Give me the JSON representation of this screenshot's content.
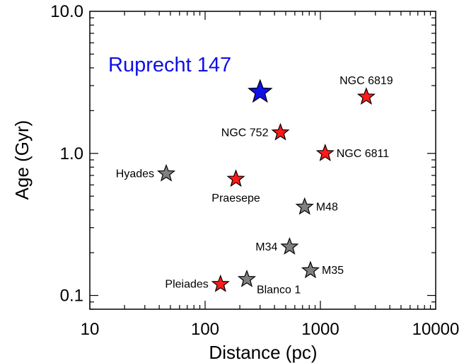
{
  "chart_data": {
    "type": "scatter",
    "xlabel": "Distance (pc)",
    "ylabel": "Age (Gyr)",
    "x_scale": "log",
    "y_scale": "log",
    "xlim": [
      10,
      10000
    ],
    "ylim": [
      0.08,
      10
    ],
    "x_ticks": [
      {
        "value": 10,
        "label": "10"
      },
      {
        "value": 100,
        "label": "100"
      },
      {
        "value": 1000,
        "label": "1000"
      },
      {
        "value": 10000,
        "label": "10000"
      }
    ],
    "y_ticks": [
      {
        "value": 0.1,
        "label": "0.1"
      },
      {
        "value": 1,
        "label": "1.0"
      },
      {
        "value": 10,
        "label": "10.0"
      }
    ],
    "grid": false,
    "annotation": "Ruprecht 147",
    "annotation_color": "#1010e8",
    "colors": {
      "red": "#ff1a1a",
      "gray": "#808080",
      "blue": "#1010e8"
    },
    "points": [
      {
        "name": "Ruprecht 147",
        "x": 300,
        "y": 2.7,
        "color": "blue",
        "big": true,
        "label": ""
      },
      {
        "name": "NGC 6819",
        "x": 2500,
        "y": 2.5,
        "color": "red",
        "label": "NGC 6819",
        "label_pos": "above"
      },
      {
        "name": "NGC 752",
        "x": 450,
        "y": 1.4,
        "color": "red",
        "label": "NGC 752",
        "label_pos": "left"
      },
      {
        "name": "NGC 6811",
        "x": 1100,
        "y": 1.0,
        "color": "red",
        "label": "NGC 6811",
        "label_pos": "right"
      },
      {
        "name": "Hyades",
        "x": 46,
        "y": 0.72,
        "color": "gray",
        "label": "Hyades",
        "label_pos": "left"
      },
      {
        "name": "Praesepe",
        "x": 185,
        "y": 0.66,
        "color": "red",
        "label": "Praesepe",
        "label_pos": "below"
      },
      {
        "name": "M48",
        "x": 730,
        "y": 0.42,
        "color": "gray",
        "label": "M48",
        "label_pos": "right"
      },
      {
        "name": "M34",
        "x": 540,
        "y": 0.22,
        "color": "gray",
        "label": "M34",
        "label_pos": "left"
      },
      {
        "name": "M35",
        "x": 820,
        "y": 0.15,
        "color": "gray",
        "label": "M35",
        "label_pos": "right"
      },
      {
        "name": "Pleiades",
        "x": 136,
        "y": 0.12,
        "color": "red",
        "label": "Pleiades",
        "label_pos": "left"
      },
      {
        "name": "Blanco 1",
        "x": 230,
        "y": 0.13,
        "color": "gray",
        "label": "Blanco 1",
        "label_pos": "belowright"
      }
    ]
  }
}
